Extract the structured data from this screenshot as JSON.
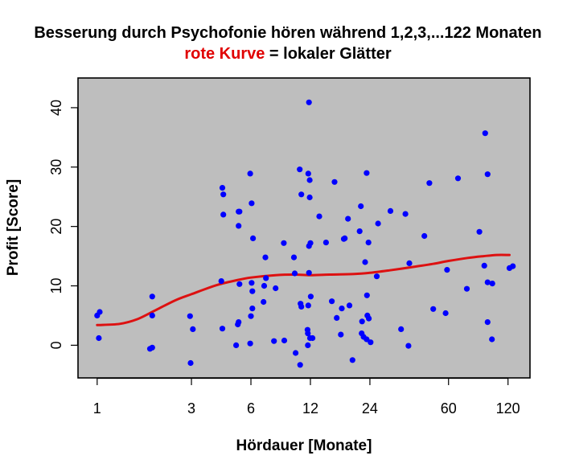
{
  "chart_data": {
    "type": "scatter",
    "title": "Besserung durch Psychofonie hören während 1,2,3,...122 Monaten",
    "subtitle": {
      "red_part": "rote Kurve",
      "rest": " = lokaler Glätter"
    },
    "xlabel": "Hördauer [Monate]",
    "ylabel": "Profit [Score]",
    "x_scale": "log",
    "xlim": [
      0.8,
      155
    ],
    "ylim": [
      -5.5,
      45
    ],
    "x_ticks": [
      1,
      3,
      6,
      12,
      24,
      60,
      120
    ],
    "x_tick_labels": [
      "1",
      "3",
      "6",
      "12",
      "24",
      "60",
      "120"
    ],
    "y_ticks": [
      0,
      10,
      20,
      30,
      40
    ],
    "y_tick_labels": [
      "0",
      "10",
      "20",
      "30",
      "40"
    ],
    "background": "#bebebe",
    "point_color": "#0000ff",
    "smoother_color": "#dd1111",
    "grid": false,
    "points": [
      {
        "x": 1,
        "y": 5
      },
      {
        "x": 1.03,
        "y": 5.6
      },
      {
        "x": 1.02,
        "y": 1.2
      },
      {
        "x": 1.9,
        "y": 8.2
      },
      {
        "x": 1.9,
        "y": 5.0
      },
      {
        "x": 1.85,
        "y": -0.6
      },
      {
        "x": 1.9,
        "y": -0.4
      },
      {
        "x": 2.95,
        "y": 4.9
      },
      {
        "x": 3.05,
        "y": 2.7
      },
      {
        "x": 2.97,
        "y": -3.0
      },
      {
        "x": 4.3,
        "y": 26.5
      },
      {
        "x": 4.35,
        "y": 25.4
      },
      {
        "x": 4.35,
        "y": 22.0
      },
      {
        "x": 4.25,
        "y": 10.8
      },
      {
        "x": 4.3,
        "y": 2.8
      },
      {
        "x": 5.2,
        "y": 22.5
      },
      {
        "x": 5.25,
        "y": 22.5
      },
      {
        "x": 5.2,
        "y": 20.1
      },
      {
        "x": 5.25,
        "y": 10.3
      },
      {
        "x": 5.2,
        "y": 3.9
      },
      {
        "x": 5.15,
        "y": 3.5
      },
      {
        "x": 5.05,
        "y": 0.0
      },
      {
        "x": 5.95,
        "y": 28.9
      },
      {
        "x": 6.05,
        "y": 23.9
      },
      {
        "x": 6.15,
        "y": 18.0
      },
      {
        "x": 6.05,
        "y": 10.5
      },
      {
        "x": 6.1,
        "y": 9.1
      },
      {
        "x": 6.1,
        "y": 6.2
      },
      {
        "x": 6.0,
        "y": 4.9
      },
      {
        "x": 5.95,
        "y": 0.3
      },
      {
        "x": 7.1,
        "y": 14.8
      },
      {
        "x": 7.15,
        "y": 11.3
      },
      {
        "x": 7.0,
        "y": 10.0
      },
      {
        "x": 6.95,
        "y": 7.3
      },
      {
        "x": 8.0,
        "y": 9.6
      },
      {
        "x": 7.85,
        "y": 0.7
      },
      {
        "x": 8.8,
        "y": 17.2
      },
      {
        "x": 8.85,
        "y": 0.8
      },
      {
        "x": 9.9,
        "y": 14.8
      },
      {
        "x": 10.0,
        "y": 12.1
      },
      {
        "x": 10.1,
        "y": -1.3
      },
      {
        "x": 10.6,
        "y": 29.6
      },
      {
        "x": 10.8,
        "y": 25.4
      },
      {
        "x": 10.7,
        "y": 7.0
      },
      {
        "x": 10.8,
        "y": 6.5
      },
      {
        "x": 10.65,
        "y": -3.3
      },
      {
        "x": 11.8,
        "y": 40.9
      },
      {
        "x": 11.7,
        "y": 28.9
      },
      {
        "x": 11.9,
        "y": 27.8
      },
      {
        "x": 11.9,
        "y": 24.9
      },
      {
        "x": 12.0,
        "y": 17.2
      },
      {
        "x": 11.8,
        "y": 16.7
      },
      {
        "x": 11.8,
        "y": 12.2
      },
      {
        "x": 12.05,
        "y": 8.2
      },
      {
        "x": 11.7,
        "y": 6.7
      },
      {
        "x": 11.6,
        "y": 2.6
      },
      {
        "x": 11.65,
        "y": 2.0
      },
      {
        "x": 11.95,
        "y": 1.2
      },
      {
        "x": 12.3,
        "y": 1.2
      },
      {
        "x": 11.65,
        "y": 0.0
      },
      {
        "x": 13.3,
        "y": 21.7
      },
      {
        "x": 14.4,
        "y": 17.3
      },
      {
        "x": 15.9,
        "y": 27.5
      },
      {
        "x": 15.4,
        "y": 7.4
      },
      {
        "x": 16.3,
        "y": 4.6
      },
      {
        "x": 17.3,
        "y": 6.2
      },
      {
        "x": 17.1,
        "y": 1.8
      },
      {
        "x": 17.9,
        "y": 18.0
      },
      {
        "x": 17.7,
        "y": 17.9
      },
      {
        "x": 18.6,
        "y": 21.3
      },
      {
        "x": 18.9,
        "y": 6.7
      },
      {
        "x": 19.6,
        "y": -2.5
      },
      {
        "x": 21.3,
        "y": 19.2
      },
      {
        "x": 21.6,
        "y": 23.4
      },
      {
        "x": 21.9,
        "y": 4.0
      },
      {
        "x": 21.8,
        "y": 2.0
      },
      {
        "x": 22.3,
        "y": 1.4
      },
      {
        "x": 23.1,
        "y": 29.0
      },
      {
        "x": 23.6,
        "y": 17.3
      },
      {
        "x": 22.7,
        "y": 14.0
      },
      {
        "x": 23.2,
        "y": 8.4
      },
      {
        "x": 23.3,
        "y": 5.0
      },
      {
        "x": 23.7,
        "y": 4.5
      },
      {
        "x": 23.1,
        "y": 1.0
      },
      {
        "x": 24.2,
        "y": 0.5
      },
      {
        "x": 26.4,
        "y": 20.5
      },
      {
        "x": 26.0,
        "y": 11.6
      },
      {
        "x": 30.5,
        "y": 22.6
      },
      {
        "x": 34.5,
        "y": 2.7
      },
      {
        "x": 36.3,
        "y": 22.1
      },
      {
        "x": 38.0,
        "y": 13.8
      },
      {
        "x": 37.6,
        "y": -0.1
      },
      {
        "x": 45.3,
        "y": 18.4
      },
      {
        "x": 48.0,
        "y": 27.3
      },
      {
        "x": 50.2,
        "y": 6.1
      },
      {
        "x": 58.0,
        "y": 5.4
      },
      {
        "x": 59.0,
        "y": 12.7
      },
      {
        "x": 67.0,
        "y": 28.1
      },
      {
        "x": 74.3,
        "y": 9.5
      },
      {
        "x": 86.0,
        "y": 19.1
      },
      {
        "x": 92.0,
        "y": 35.7
      },
      {
        "x": 91.0,
        "y": 13.4
      },
      {
        "x": 94.6,
        "y": 28.8
      },
      {
        "x": 94.6,
        "y": 10.6
      },
      {
        "x": 94.6,
        "y": 3.9
      },
      {
        "x": 100.0,
        "y": 10.4
      },
      {
        "x": 99.5,
        "y": 1.0
      },
      {
        "x": 122.0,
        "y": 13.0
      },
      {
        "x": 127.0,
        "y": 13.3
      }
    ],
    "smoother": [
      {
        "x": 1,
        "y": 3.4
      },
      {
        "x": 1.3,
        "y": 3.6
      },
      {
        "x": 1.6,
        "y": 4.4
      },
      {
        "x": 2.0,
        "y": 6.0
      },
      {
        "x": 2.5,
        "y": 7.6
      },
      {
        "x": 3.0,
        "y": 8.6
      },
      {
        "x": 4.0,
        "y": 10.1
      },
      {
        "x": 5.0,
        "y": 10.9
      },
      {
        "x": 6.0,
        "y": 11.4
      },
      {
        "x": 8.0,
        "y": 11.8
      },
      {
        "x": 10.0,
        "y": 11.9
      },
      {
        "x": 12.0,
        "y": 11.8
      },
      {
        "x": 15.0,
        "y": 11.9
      },
      {
        "x": 20.0,
        "y": 12.0
      },
      {
        "x": 24.0,
        "y": 12.2
      },
      {
        "x": 30.0,
        "y": 12.6
      },
      {
        "x": 40.0,
        "y": 13.2
      },
      {
        "x": 50.0,
        "y": 13.7
      },
      {
        "x": 60.0,
        "y": 14.2
      },
      {
        "x": 75.0,
        "y": 14.7
      },
      {
        "x": 90.0,
        "y": 15.0
      },
      {
        "x": 105.0,
        "y": 15.2
      },
      {
        "x": 122.0,
        "y": 15.2
      }
    ]
  }
}
